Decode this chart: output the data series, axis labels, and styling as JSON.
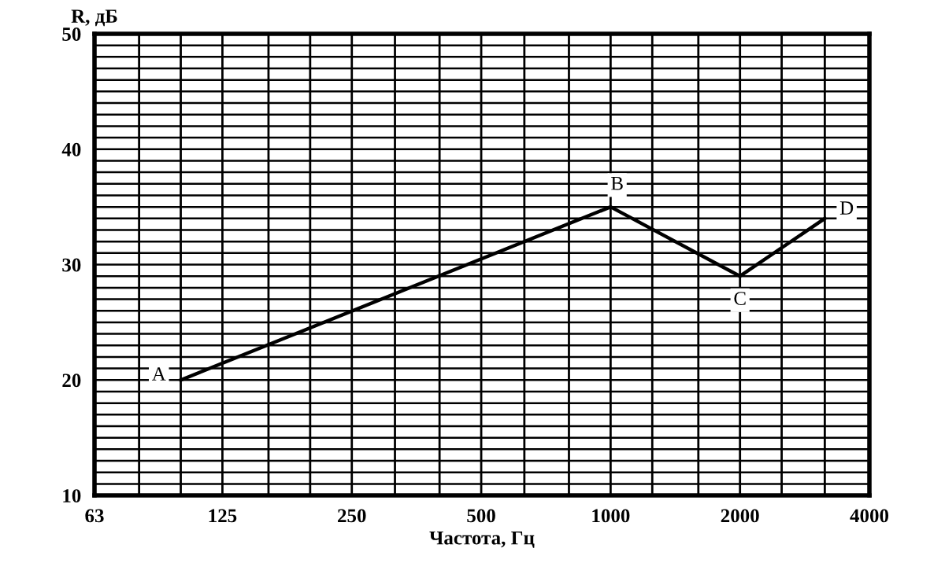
{
  "chart_data": {
    "type": "line",
    "ylabel": "R, дБ",
    "xlabel": "Частота, Гц",
    "x": [
      100,
      1000,
      2000,
      3150
    ],
    "series": [
      {
        "color": "#000000",
        "values": [
          20,
          35,
          29,
          34
        ]
      }
    ],
    "annotations": [
      {
        "text": "A",
        "x": 100,
        "y": 20
      },
      {
        "text": "B",
        "x": 1000,
        "y": 35
      },
      {
        "text": "C",
        "x": 2000,
        "y": 29
      },
      {
        "text": "D",
        "x": 3150,
        "y": 34
      }
    ],
    "log": "x",
    "xlim": [
      63,
      4000
    ],
    "xticks": [
      63,
      {
        "value": 80,
        "label": null
      },
      {
        "value": 100,
        "label": null
      },
      125,
      {
        "value": 160,
        "label": null
      },
      {
        "value": 200,
        "label": null
      },
      250,
      {
        "value": 315,
        "label": null
      },
      {
        "value": 400,
        "label": null
      },
      500,
      {
        "value": 630,
        "label": null
      },
      {
        "value": 800,
        "label": null
      },
      1000,
      {
        "value": 1250,
        "label": null
      },
      {
        "value": 1600,
        "label": null
      },
      2000,
      {
        "value": 2500,
        "label": null
      },
      {
        "value": 3150,
        "label": null
      },
      4000
    ],
    "ylim": [
      10,
      50
    ],
    "yticks": [
      10,
      {
        "value": 11,
        "label": null
      },
      {
        "value": 12,
        "label": null
      },
      {
        "value": 13,
        "label": null
      },
      {
        "value": 14,
        "label": null
      },
      {
        "value": 15,
        "label": null
      },
      {
        "value": 16,
        "label": null
      },
      {
        "value": 17,
        "label": null
      },
      {
        "value": 18,
        "label": null
      },
      {
        "value": 19,
        "label": null
      },
      20,
      {
        "value": 21,
        "label": null
      },
      {
        "value": 22,
        "label": null
      },
      {
        "value": 23,
        "label": null
      },
      {
        "value": 24,
        "label": null
      },
      {
        "value": 25,
        "label": null
      },
      {
        "value": 26,
        "label": null
      },
      {
        "value": 27,
        "label": null
      },
      {
        "value": 28,
        "label": null
      },
      {
        "value": 29,
        "label": null
      },
      30,
      {
        "value": 31,
        "label": null
      },
      {
        "value": 32,
        "label": null
      },
      {
        "value": 33,
        "label": null
      },
      {
        "value": 34,
        "label": null
      },
      {
        "value": 35,
        "label": null
      },
      {
        "value": 36,
        "label": null
      },
      {
        "value": 37,
        "label": null
      },
      {
        "value": 38,
        "label": null
      },
      {
        "value": 39,
        "label": null
      },
      40,
      {
        "value": 41,
        "label": null
      },
      {
        "value": 42,
        "label": null
      },
      {
        "value": 43,
        "label": null
      },
      {
        "value": 44,
        "label": null
      },
      {
        "value": 45,
        "label": null
      },
      {
        "value": 46,
        "label": null
      },
      {
        "value": 47,
        "label": null
      },
      {
        "value": 48,
        "label": null
      },
      {
        "value": 49,
        "label": null
      },
      50
    ],
    "grid": true,
    "marker": "none",
    "line_style": "solid"
  }
}
